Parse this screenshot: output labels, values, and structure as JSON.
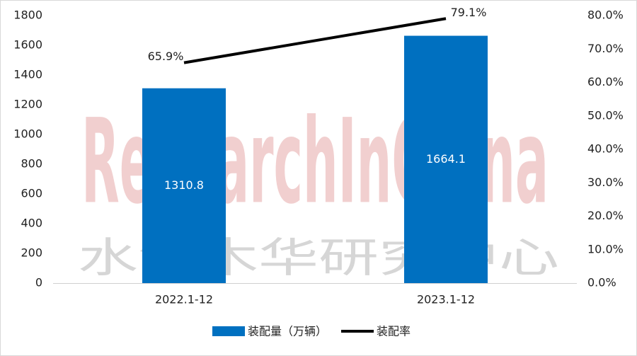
{
  "chart_data": {
    "type": "bar",
    "categories": [
      "2022.1-12",
      "2023.1-12"
    ],
    "series": [
      {
        "name": "装配量（万辆）",
        "color": "#0070c0",
        "values": [
          1310.8,
          1664.1
        ]
      },
      {
        "name": "装配率",
        "type": "line",
        "axis": "y2",
        "color": "#000000",
        "values": [
          65.9,
          79.1
        ],
        "value_labels": [
          "65.9%",
          "79.1%"
        ]
      }
    ],
    "ylim": [
      0,
      1800
    ],
    "yticks": [
      0,
      200,
      400,
      600,
      800,
      1000,
      1200,
      1400,
      1600,
      1800
    ],
    "y2lim": [
      0,
      80
    ],
    "y2ticks": [
      {
        "value": 0,
        "label": "0.0%"
      },
      {
        "value": 10,
        "label": "10.0%"
      },
      {
        "value": 20,
        "label": "20.0%"
      },
      {
        "value": 30,
        "label": "30.0%"
      },
      {
        "value": 40,
        "label": "40.0%"
      },
      {
        "value": 50,
        "label": "50.0%"
      },
      {
        "value": 60,
        "label": "60.0%"
      },
      {
        "value": 70,
        "label": "70.0%"
      },
      {
        "value": 80,
        "label": "80.0%"
      }
    ],
    "grid": false,
    "legend": "bottom",
    "watermark": [
      "ResearchInChina",
      "水清木华研究中心"
    ]
  }
}
